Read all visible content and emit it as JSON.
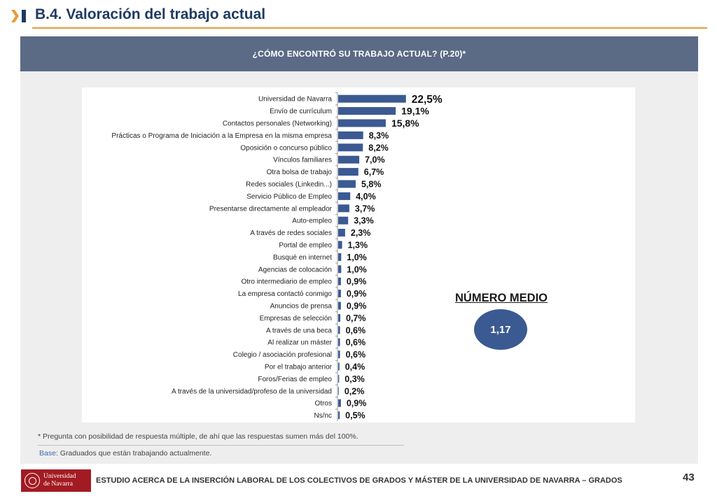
{
  "header": {
    "title": "B.4. Valoración del trabajo actual"
  },
  "question": {
    "text": "¿CÓMO ENCONTRÓ SU TRABAJO ACTUAL? (P.20)*"
  },
  "mean": {
    "title": "NÚMERO MEDIO",
    "value": "1,17"
  },
  "notes": {
    "footnote": "* Pregunta con posibilidad de respuesta múltiple, de  ahí que las respuestas sumen más del 100%.",
    "base_label": "Base",
    "base_text": ": Graduados que están trabajando actualmente."
  },
  "footer": {
    "logo_line1": "Universidad",
    "logo_line2": "de Navarra",
    "study_title": "ESTUDIO ACERCA DE LA INSERCIÓN LABORAL DE LOS COLECTIVOS DE GRADOS Y MÁSTER DE LA UNIVERSIDAD DE NAVARRA – GRADOS",
    "page_number": "43"
  },
  "colors": {
    "bar": "#3b5a92",
    "title": "#1f3a63",
    "accent": "#e99a3b",
    "question_bar": "#5b6a85",
    "logo": "#a31b22"
  },
  "chart_data": {
    "type": "bar",
    "orientation": "horizontal",
    "title": "",
    "xlabel": "",
    "ylabel": "",
    "unit": "%",
    "categories": [
      "Universidad de Navarra",
      "Envío de currículum",
      "Contactos personales (Networking)",
      "Prácticas o Programa de Iniciación a la Empresa en la misma empresa",
      "Oposición o concurso público",
      "Vínculos familiares",
      "Otra bolsa de trabajo",
      "Redes sociales (Linkedin...)",
      "Servicio Público de Empleo",
      "Presentarse directamente al empleador",
      "Auto-empleo",
      "A través de redes sociales",
      "Portal de empleo",
      "Busqué en internet",
      "Agencias de colocación",
      "Otro intermediario de empleo",
      "La empresa contactó conmigo",
      "Anuncios de prensa",
      "Empresas de selección",
      "A través de una beca",
      "Al realizar un máster",
      "Colegio / asociación profesional",
      "Por el trabajo anterior",
      "Foros/Ferias de empleo",
      "A través de la universidad/profeso de la universidad",
      "Otros",
      "Ns/nc"
    ],
    "values": [
      22.5,
      19.1,
      15.8,
      8.3,
      8.2,
      7.0,
      6.7,
      5.8,
      4.0,
      3.7,
      3.3,
      2.3,
      1.3,
      1.0,
      1.0,
      0.9,
      0.9,
      0.9,
      0.7,
      0.6,
      0.6,
      0.6,
      0.4,
      0.3,
      0.2,
      0.9,
      0.5
    ],
    "value_labels": [
      "22,5%",
      "19,1%",
      "15,8%",
      "8,3%",
      "8,2%",
      "7,0%",
      "6,7%",
      "5,8%",
      "4,0%",
      "3,7%",
      "3,3%",
      "2,3%",
      "1,3%",
      "1,0%",
      "1,0%",
      "0,9%",
      "0,9%",
      "0,9%",
      "0,7%",
      "0,6%",
      "0,6%",
      "0,6%",
      "0,4%",
      "0,3%",
      "0,2%",
      "0,9%",
      "0,5%"
    ],
    "grid": false,
    "legend": "none"
  }
}
